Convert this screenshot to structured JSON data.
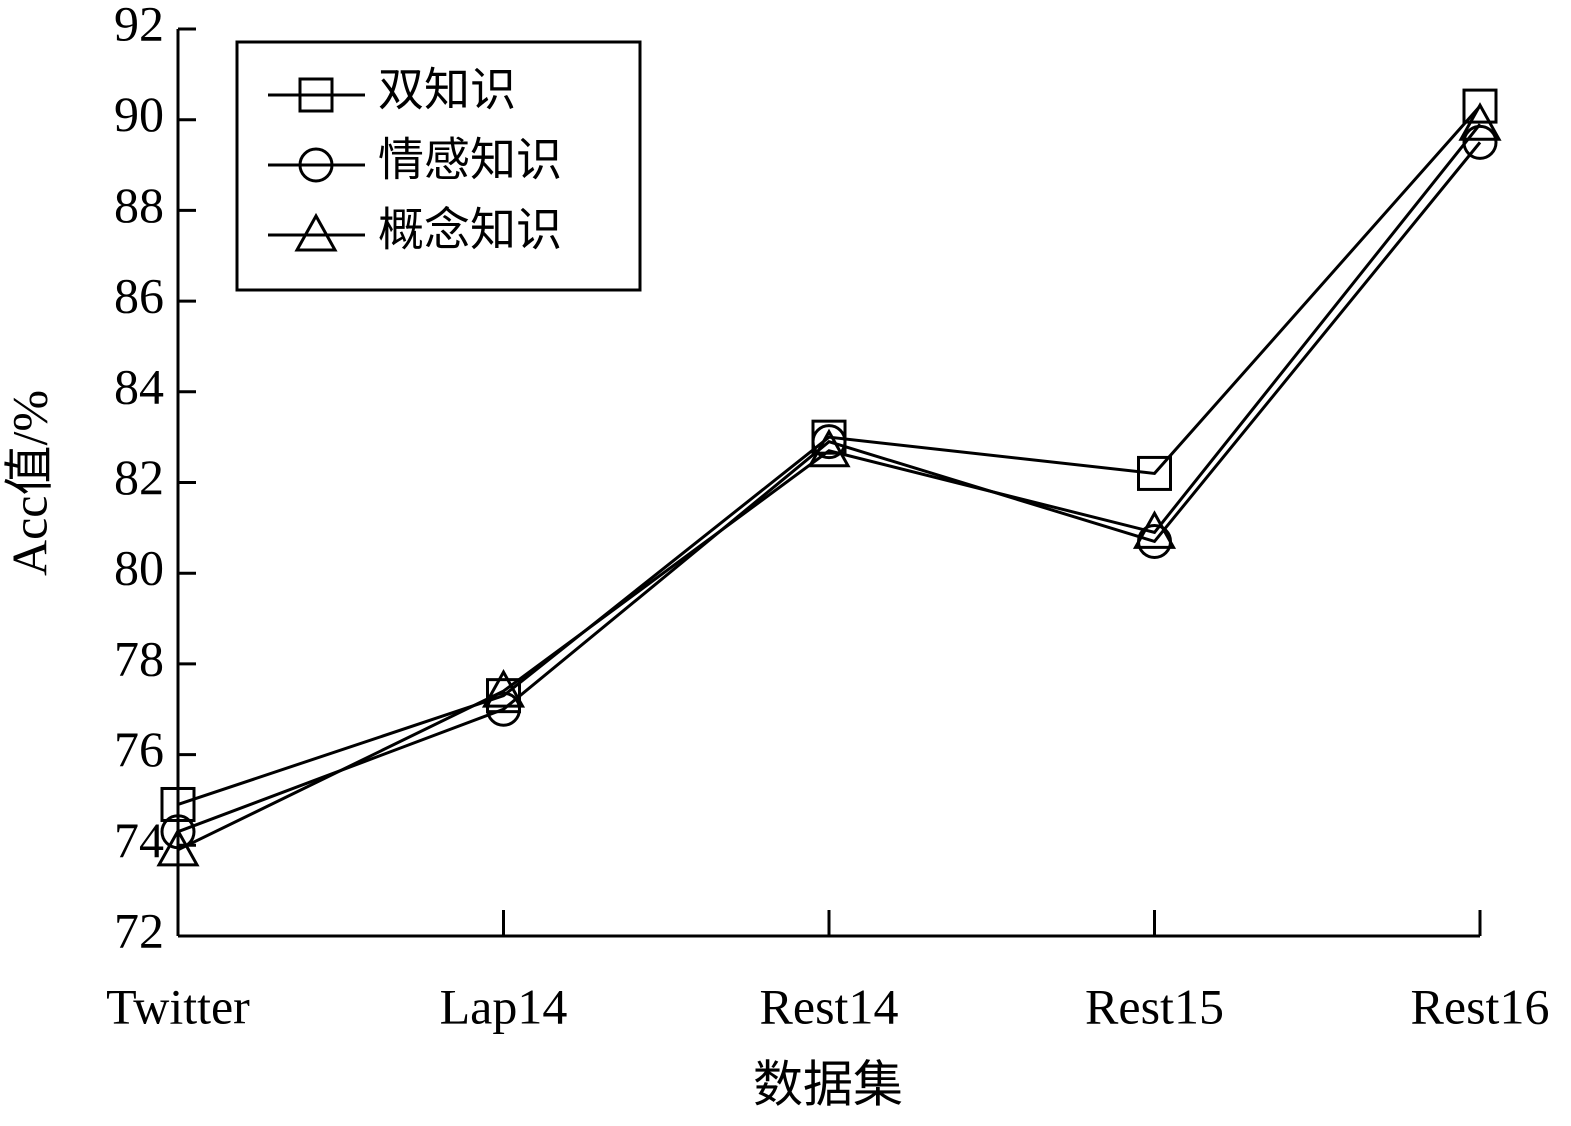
{
  "chart_data": {
    "type": "line",
    "x_label": "数据集",
    "y_label": "Acc值/%",
    "categories": [
      "Twitter",
      "Lap14",
      "Rest14",
      "Rest15",
      "Rest16"
    ],
    "series": [
      {
        "name": "双知识",
        "color": "#000000",
        "marker": "square",
        "values": [
          74.9,
          77.3,
          83.0,
          82.2,
          90.3
        ]
      },
      {
        "name": "情感知识",
        "color": "#000000",
        "marker": "circle",
        "values": [
          74.3,
          77.0,
          82.9,
          80.7,
          89.5
        ]
      },
      {
        "name": "概念知识",
        "color": "#000000",
        "marker": "triangle",
        "values": [
          73.9,
          77.4,
          82.7,
          80.9,
          89.9
        ]
      }
    ],
    "ylim": [
      72,
      92
    ],
    "yticks": [
      72,
      74,
      76,
      78,
      80,
      82,
      84,
      86,
      88,
      90,
      92
    ],
    "legend": "upper left",
    "grid": false
  }
}
